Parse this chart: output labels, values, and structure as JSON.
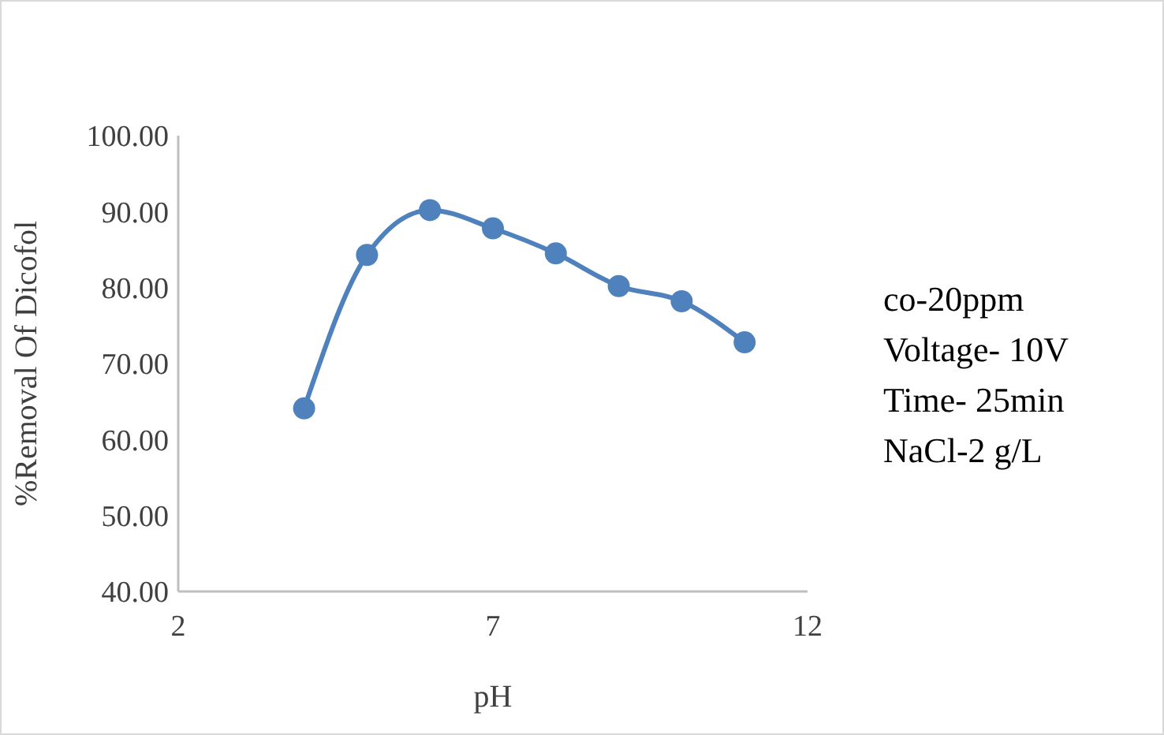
{
  "chart_data": {
    "type": "line",
    "xlabel": "pH",
    "ylabel": "%Removal Of Dicofol",
    "x": [
      4,
      5,
      6,
      7,
      8,
      9,
      10,
      11
    ],
    "series": [
      {
        "color": "#4f81bd",
        "values": [
          64.1,
          84.3,
          90.2,
          87.8,
          84.5,
          80.2,
          78.2,
          72.8
        ]
      }
    ],
    "xlim": [
      2,
      12
    ],
    "xticks": [
      2,
      7,
      12
    ],
    "ylim": [
      40,
      100
    ],
    "yticks": [
      {
        "value": 40,
        "label": "40.00"
      },
      {
        "value": 50,
        "label": "50.00"
      },
      {
        "value": 60,
        "label": "60.00"
      },
      {
        "value": 70,
        "label": "70.00"
      },
      {
        "value": 80,
        "label": "80.00"
      },
      {
        "value": 90,
        "label": "90.00"
      },
      {
        "value": 100,
        "label": "100.00"
      }
    ],
    "marker": "circle",
    "grid": false,
    "annotations": [
      "co-20ppm",
      "Voltage- 10V",
      "Time- 25min",
      "NaCl-2 g/L"
    ]
  }
}
